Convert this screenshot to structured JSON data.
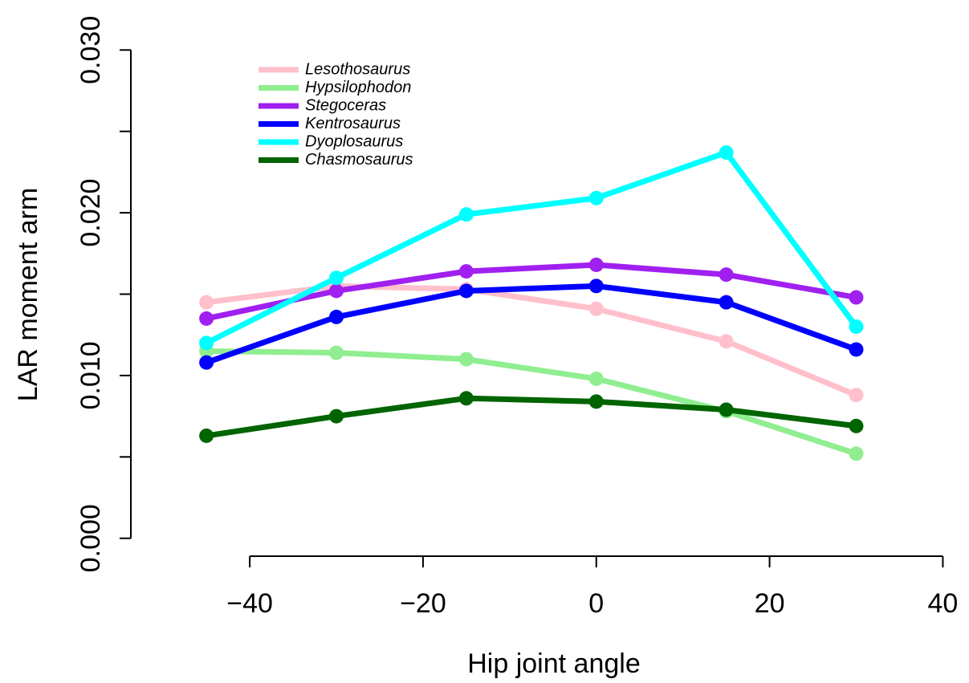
{
  "chart_data": {
    "type": "line",
    "x_label": "Hip joint angle",
    "y_label": "LAR moment arm",
    "x": [
      -45,
      -30,
      -15,
      0,
      15,
      30
    ],
    "series": [
      {
        "name": "Lesothosaurus",
        "color": "#ffc0cb",
        "values": [
          0.0145,
          0.0155,
          0.0153,
          0.0141,
          0.0121,
          0.0088
        ]
      },
      {
        "name": "Hypsilophodon",
        "color": "#90ee90",
        "values": [
          0.0115,
          0.0114,
          0.011,
          0.0098,
          0.0078,
          0.0052
        ]
      },
      {
        "name": "Stegoceras",
        "color": "#a020f0",
        "values": [
          0.0135,
          0.0152,
          0.0164,
          0.0168,
          0.0162,
          0.0148
        ]
      },
      {
        "name": "Kentrosaurus",
        "color": "#0000ff",
        "values": [
          0.0108,
          0.0136,
          0.0152,
          0.0155,
          0.0145,
          0.0116
        ]
      },
      {
        "name": "Dyoplosaurus",
        "color": "#00ffff",
        "values": [
          0.012,
          0.016,
          0.0199,
          0.0209,
          0.0237,
          0.013
        ]
      },
      {
        "name": "Chasmosaurus",
        "color": "#006400",
        "values": [
          0.0063,
          0.0075,
          0.0086,
          0.0084,
          0.0079,
          0.0069
        ]
      }
    ],
    "xlim": [
      -54,
      42
    ],
    "xticks": [
      {
        "value": -40,
        "label": "−40"
      },
      {
        "value": -20,
        "label": "−20"
      },
      0,
      20,
      40
    ],
    "ylim": [
      -0.0011,
      0.0311
    ],
    "yticks": [
      {
        "value": 0,
        "label": "0.000"
      },
      {
        "value": 0.005,
        "label": null
      },
      {
        "value": 0.01,
        "label": "0.010"
      },
      {
        "value": 0.015,
        "label": null
      },
      {
        "value": 0.02,
        "label": "0.020"
      },
      {
        "value": 0.025,
        "label": null
      },
      {
        "value": 0.03,
        "label": "0.030"
      }
    ],
    "legend_position": "top-left",
    "markers": true
  }
}
